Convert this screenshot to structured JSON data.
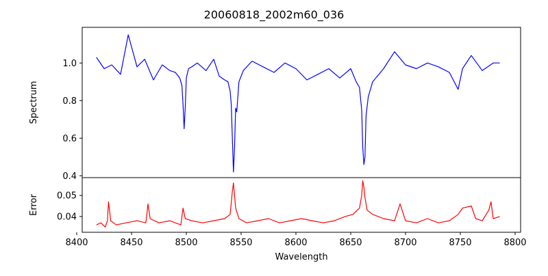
{
  "chart_data": [
    {
      "type": "line",
      "title": "20060818_2002m60_036",
      "ylabel": "Spectrum",
      "xlabel": "",
      "xlim": [
        8405,
        8805
      ],
      "ylim": [
        0.39,
        1.19
      ],
      "yticks": [
        0.4,
        0.6,
        0.8,
        1.0
      ],
      "ytick_labels": [
        "0.4",
        "0.6",
        "0.8",
        "1.0"
      ],
      "grid": false,
      "series": [
        {
          "color": "#0000ff",
          "x": [
            8418,
            8425,
            8432,
            8440,
            8447,
            8455,
            8462,
            8470,
            8478,
            8485,
            8490,
            8494,
            8496,
            8497,
            8498,
            8499,
            8500,
            8502,
            8505,
            8510,
            8518,
            8525,
            8530,
            8535,
            8538,
            8540,
            8541,
            8542,
            8543,
            8544,
            8545,
            8546,
            8548,
            8552,
            8560,
            8570,
            8580,
            8590,
            8600,
            8610,
            8620,
            8630,
            8640,
            8650,
            8655,
            8658,
            8660,
            8661,
            8662,
            8663,
            8664,
            8666,
            8670,
            8680,
            8690,
            8700,
            8710,
            8720,
            8730,
            8740,
            8748,
            8752,
            8760,
            8770,
            8780,
            8786
          ],
          "y": [
            1.03,
            0.97,
            0.99,
            0.94,
            1.15,
            0.98,
            1.02,
            0.91,
            0.99,
            0.96,
            0.95,
            0.92,
            0.88,
            0.78,
            0.65,
            0.76,
            0.92,
            0.97,
            0.98,
            1.0,
            0.96,
            1.02,
            0.93,
            0.91,
            0.9,
            0.85,
            0.78,
            0.6,
            0.42,
            0.55,
            0.76,
            0.74,
            0.9,
            0.96,
            1.01,
            0.98,
            0.95,
            1.0,
            0.97,
            0.91,
            0.94,
            0.97,
            0.92,
            0.97,
            0.9,
            0.87,
            0.75,
            0.55,
            0.46,
            0.5,
            0.72,
            0.82,
            0.9,
            0.97,
            1.06,
            0.99,
            0.97,
            1.0,
            0.98,
            0.95,
            0.86,
            0.97,
            1.04,
            0.96,
            1.0,
            1.0
          ]
        }
      ]
    },
    {
      "type": "line",
      "title": "",
      "ylabel": "Error",
      "xlabel": "Wavelength",
      "xlim": [
        8405,
        8805
      ],
      "ylim": [
        0.0325,
        0.0585
      ],
      "yticks": [
        0.04,
        0.05
      ],
      "ytick_labels": [
        "0.04",
        "0.05"
      ],
      "xticks": [
        8400,
        8450,
        8500,
        8550,
        8600,
        8650,
        8700,
        8750,
        8800
      ],
      "xtick_labels": [
        "8400",
        "8450",
        "8500",
        "8550",
        "8600",
        "8650",
        "8700",
        "8750",
        "8800"
      ],
      "grid": false,
      "series": [
        {
          "color": "#ff0000",
          "x": [
            8418,
            8422,
            8426,
            8428,
            8429,
            8431,
            8436,
            8445,
            8455,
            8463,
            8464,
            8465,
            8467,
            8475,
            8485,
            8495,
            8497,
            8499,
            8505,
            8515,
            8525,
            8535,
            8540,
            8542,
            8543,
            8545,
            8548,
            8555,
            8565,
            8575,
            8585,
            8595,
            8605,
            8615,
            8625,
            8635,
            8645,
            8652,
            8658,
            8660,
            8661,
            8662,
            8663,
            8665,
            8670,
            8680,
            8690,
            8695,
            8700,
            8710,
            8720,
            8730,
            8740,
            8748,
            8752,
            8760,
            8764,
            8770,
            8776,
            8778,
            8780,
            8786
          ],
          "y": [
            0.036,
            0.037,
            0.035,
            0.038,
            0.047,
            0.038,
            0.036,
            0.037,
            0.038,
            0.037,
            0.041,
            0.046,
            0.039,
            0.037,
            0.038,
            0.036,
            0.044,
            0.039,
            0.038,
            0.037,
            0.038,
            0.039,
            0.041,
            0.052,
            0.056,
            0.044,
            0.039,
            0.037,
            0.038,
            0.039,
            0.037,
            0.038,
            0.039,
            0.038,
            0.037,
            0.038,
            0.04,
            0.041,
            0.044,
            0.05,
            0.057,
            0.054,
            0.049,
            0.043,
            0.041,
            0.039,
            0.038,
            0.046,
            0.038,
            0.037,
            0.039,
            0.037,
            0.038,
            0.041,
            0.044,
            0.045,
            0.039,
            0.038,
            0.043,
            0.047,
            0.039,
            0.04
          ]
        }
      ]
    }
  ]
}
